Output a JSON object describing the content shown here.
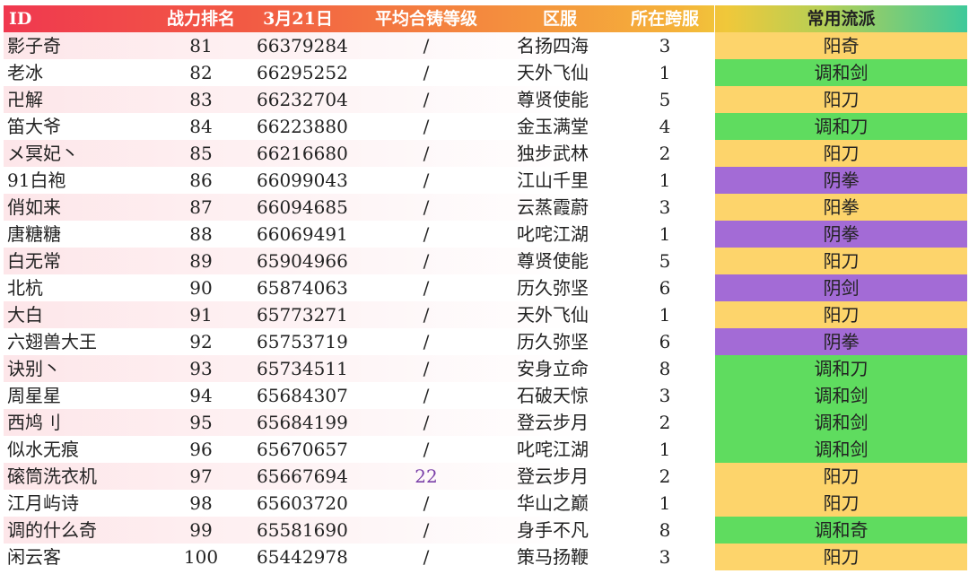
{
  "colors": {
    "yang": "#fdd46b",
    "tiao": "#5fdc5f",
    "yin": "#a36bd6"
  },
  "headers": {
    "id": "ID",
    "rank": "战力排名",
    "date": "3月21日",
    "avg": "平均合铸等级",
    "server": "区服",
    "cross": "所在跨服",
    "style": "常用流派"
  },
  "rows": [
    {
      "id": "影子奇",
      "rank": "81",
      "power": "66379284",
      "avg": "/",
      "server": "名扬四海",
      "cross": "3",
      "style": "阳奇",
      "style_color": "#fdd46b"
    },
    {
      "id": "老冰",
      "rank": "82",
      "power": "66295252",
      "avg": "/",
      "server": "天外飞仙",
      "cross": "1",
      "style": "调和剑",
      "style_color": "#5fdc5f"
    },
    {
      "id": "卍解",
      "rank": "83",
      "power": "66232704",
      "avg": "/",
      "server": "尊贤使能",
      "cross": "5",
      "style": "阳刀",
      "style_color": "#fdd46b"
    },
    {
      "id": "笛大爷",
      "rank": "84",
      "power": "66223880",
      "avg": "/",
      "server": "金玉满堂",
      "cross": "4",
      "style": "调和刀",
      "style_color": "#5fdc5f"
    },
    {
      "id": "メ冥妃丶",
      "rank": "85",
      "power": "66216680",
      "avg": "/",
      "server": "独步武林",
      "cross": "2",
      "style": "阳刀",
      "style_color": "#fdd46b"
    },
    {
      "id": "91白袍",
      "rank": "86",
      "power": "66099043",
      "avg": "/",
      "server": "江山千里",
      "cross": "1",
      "style": "阴拳",
      "style_color": "#a36bd6"
    },
    {
      "id": "俏如来",
      "rank": "87",
      "power": "66094685",
      "avg": "/",
      "server": "云蒸霞蔚",
      "cross": "3",
      "style": "阳拳",
      "style_color": "#fdd46b"
    },
    {
      "id": "唐糖糖",
      "rank": "88",
      "power": "66069491",
      "avg": "/",
      "server": "叱咤江湖",
      "cross": "1",
      "style": "阴拳",
      "style_color": "#a36bd6"
    },
    {
      "id": "白无常",
      "rank": "89",
      "power": "65904966",
      "avg": "/",
      "server": "尊贤使能",
      "cross": "5",
      "style": "阳刀",
      "style_color": "#fdd46b"
    },
    {
      "id": "北杭",
      "rank": "90",
      "power": "65874063",
      "avg": "/",
      "server": "历久弥坚",
      "cross": "6",
      "style": "阴剑",
      "style_color": "#a36bd6"
    },
    {
      "id": "大白",
      "rank": "91",
      "power": "65773271",
      "avg": "/",
      "server": "天外飞仙",
      "cross": "1",
      "style": "阳刀",
      "style_color": "#fdd46b"
    },
    {
      "id": "六翅兽大王",
      "rank": "92",
      "power": "65753719",
      "avg": "/",
      "server": "历久弥坚",
      "cross": "6",
      "style": "阴拳",
      "style_color": "#a36bd6"
    },
    {
      "id": "诀别丶",
      "rank": "93",
      "power": "65734511",
      "avg": "/",
      "server": "安身立命",
      "cross": "8",
      "style": "调和刀",
      "style_color": "#5fdc5f"
    },
    {
      "id": "周星星",
      "rank": "94",
      "power": "65684307",
      "avg": "/",
      "server": "石破天惊",
      "cross": "3",
      "style": "调和剑",
      "style_color": "#5fdc5f"
    },
    {
      "id": "西鸠刂",
      "rank": "95",
      "power": "65684199",
      "avg": "/",
      "server": "登云步月",
      "cross": "2",
      "style": "调和剑",
      "style_color": "#5fdc5f"
    },
    {
      "id": "似水无痕",
      "rank": "96",
      "power": "65670657",
      "avg": "/",
      "server": "叱咤江湖",
      "cross": "1",
      "style": "调和剑",
      "style_color": "#5fdc5f"
    },
    {
      "id": "磙筒洗衣机",
      "rank": "97",
      "power": "65667694",
      "avg": "22",
      "server": "登云步月",
      "cross": "2",
      "style": "阳刀",
      "style_color": "#fdd46b"
    },
    {
      "id": "江月屿诗",
      "rank": "98",
      "power": "65603720",
      "avg": "/",
      "server": "华山之巅",
      "cross": "1",
      "style": "阳刀",
      "style_color": "#fdd46b"
    },
    {
      "id": "调的什么奇",
      "rank": "99",
      "power": "65581690",
      "avg": "/",
      "server": "身手不凡",
      "cross": "8",
      "style": "调和奇",
      "style_color": "#5fdc5f"
    },
    {
      "id": "闲云客",
      "rank": "100",
      "power": "65442978",
      "avg": "/",
      "server": "策马扬鞭",
      "cross": "3",
      "style": "阳刀",
      "style_color": "#fdd46b"
    }
  ]
}
